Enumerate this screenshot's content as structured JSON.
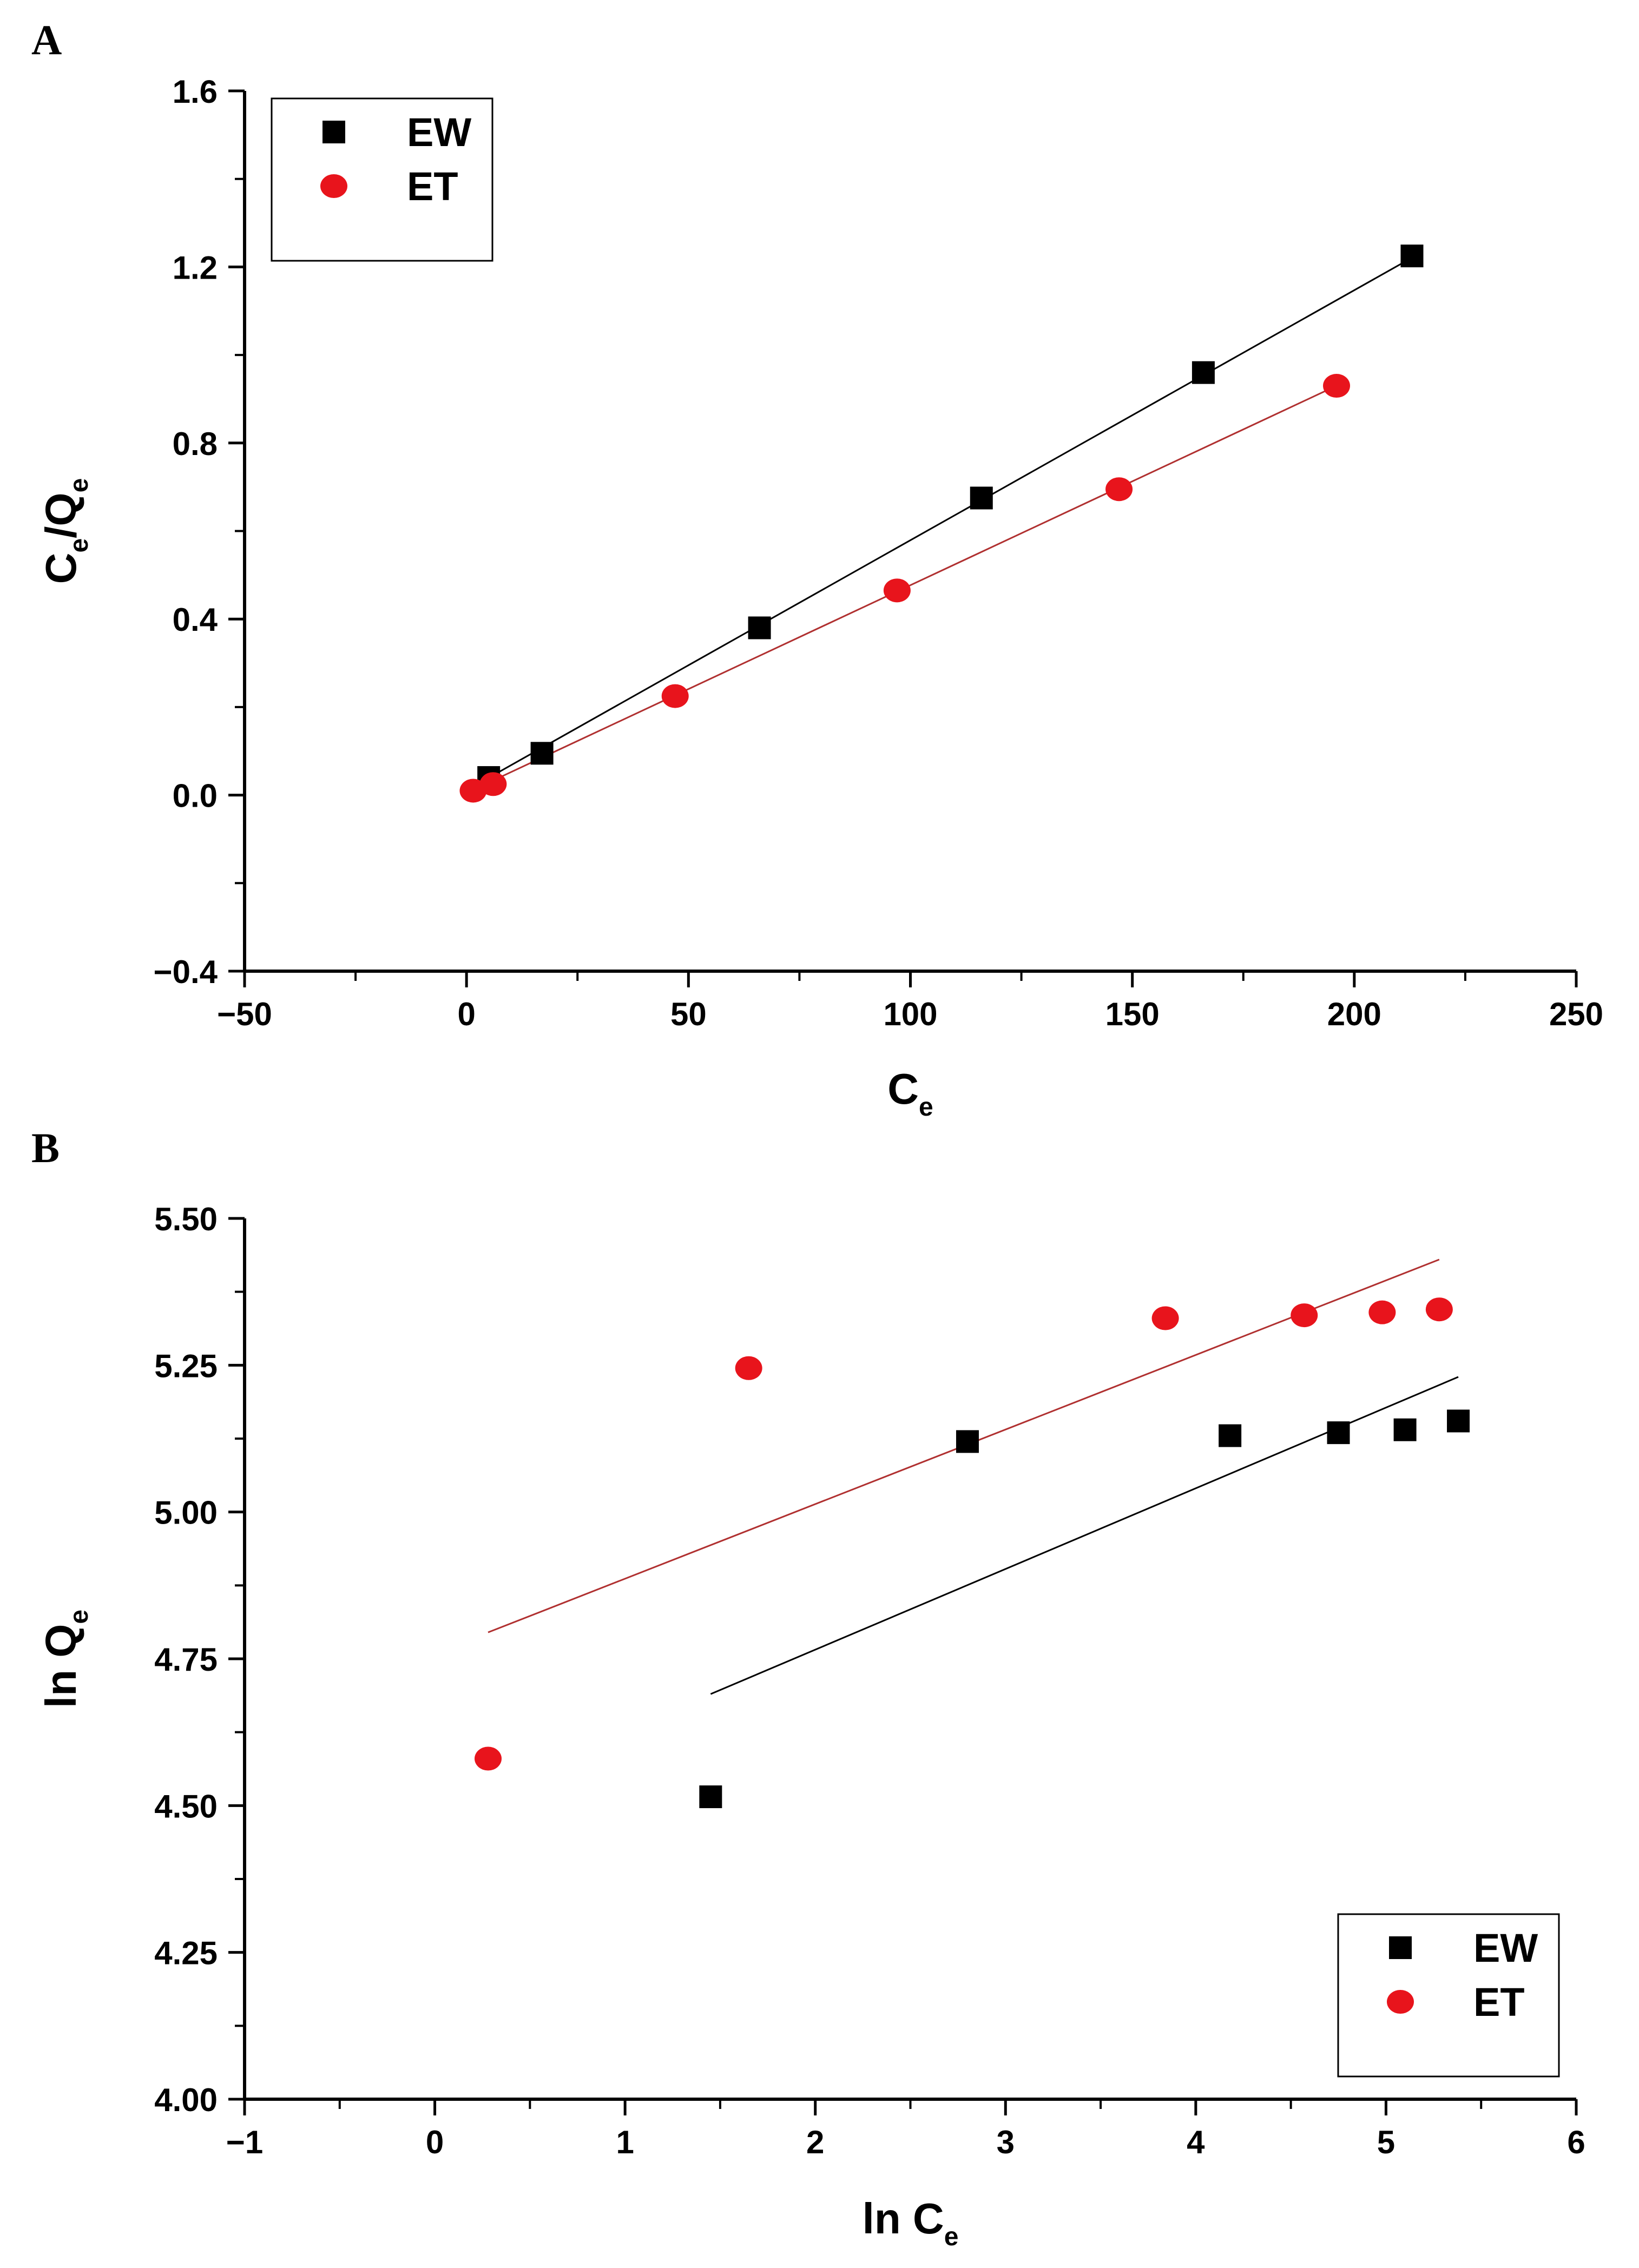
{
  "chart_data": [
    {
      "type": "scatter",
      "panel_label": "A",
      "xlabel": {
        "main": "C",
        "sub": "e"
      },
      "ylabel": {
        "p1": "C",
        "s1": "e",
        "p2": "/Q",
        "s2": "e"
      },
      "xlim": [
        -50,
        250
      ],
      "ylim": [
        -0.4,
        1.6
      ],
      "xticks": [
        -50,
        0,
        50,
        100,
        150,
        200,
        250
      ],
      "xtick_labels": [
        "−50",
        "0",
        "50",
        "100",
        "150",
        "200",
        "250"
      ],
      "yticks": [
        -0.4,
        0.0,
        0.4,
        0.8,
        1.2,
        1.6
      ],
      "ytick_labels": [
        "−0.4",
        "0.0",
        "0.4",
        "0.8",
        "1.2",
        "1.6"
      ],
      "legend_position": "top-left",
      "series": [
        {
          "name": "EW",
          "marker": "square",
          "color": "#000000",
          "x": [
            5,
            17,
            66,
            116,
            166,
            213
          ],
          "y": [
            0.04,
            0.095,
            0.38,
            0.675,
            0.96,
            1.225
          ],
          "fit": {
            "x": [
              0,
              213
            ],
            "y": [
              0.011,
              1.221
            ]
          }
        },
        {
          "name": "ET",
          "marker": "circle",
          "color": "#e8141c",
          "x": [
            1.5,
            6,
            47,
            97,
            147,
            196
          ],
          "y": [
            0.01,
            0.025,
            0.225,
            0.465,
            0.695,
            0.93
          ],
          "fit": {
            "x": [
              0,
              196
            ],
            "y": [
              0.005,
              0.93
            ]
          }
        }
      ]
    },
    {
      "type": "scatter",
      "panel_label": "B",
      "xlabel": {
        "main": "ln C",
        "sub": "e"
      },
      "ylabel": {
        "p1": "ln Q",
        "s1": "e",
        "p2": "",
        "s2": ""
      },
      "xlim": [
        -1,
        6
      ],
      "ylim": [
        4.0,
        5.5
      ],
      "xticks": [
        -1,
        0,
        1,
        2,
        3,
        4,
        5,
        6
      ],
      "xtick_labels": [
        "−1",
        "0",
        "1",
        "2",
        "3",
        "4",
        "5",
        "6"
      ],
      "yticks": [
        4.0,
        4.25,
        4.5,
        4.75,
        5.0,
        5.25,
        5.5
      ],
      "ytick_labels": [
        "4.00",
        "4.25",
        "4.50",
        "4.75",
        "5.00",
        "5.25",
        "5.50"
      ],
      "legend_position": "bottom-right",
      "series": [
        {
          "name": "EW",
          "marker": "square",
          "color": "#000000",
          "x": [
            1.45,
            2.8,
            4.18,
            4.75,
            5.1,
            5.38
          ],
          "y": [
            4.515,
            5.12,
            5.13,
            5.135,
            5.14,
            5.155
          ],
          "fit": {
            "x": [
              1.45,
              5.38
            ],
            "y": [
              4.69,
              5.23
            ]
          }
        },
        {
          "name": "ET",
          "marker": "circle",
          "color": "#e8141c",
          "x": [
            0.28,
            1.65,
            3.84,
            4.57,
            4.98,
            5.28
          ],
          "y": [
            4.58,
            5.245,
            5.33,
            5.335,
            5.34,
            5.345
          ],
          "fit": {
            "x": [
              0.28,
              5.28
            ],
            "y": [
              4.795,
              5.43
            ]
          }
        }
      ]
    }
  ]
}
